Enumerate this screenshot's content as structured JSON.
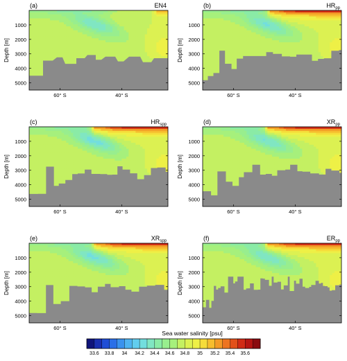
{
  "chart_data": {
    "type": "heatmap",
    "figure": "six-panel meridional sections of sea water salinity (depth vs latitude)",
    "y_label": "Depth [m]",
    "y_ticks": [
      1000,
      2000,
      3000,
      4000,
      5000
    ],
    "y_range": [
      0,
      5500
    ],
    "x_ticks": [
      "60° S",
      "40° S"
    ],
    "x_tick_values": [
      -60,
      -40
    ],
    "x_range": [
      -70,
      -25
    ],
    "colorbar": {
      "label": "Sea water salinity [psu]",
      "tick_labels": [
        "33.6",
        "33.8",
        "34",
        "34.2",
        "34.4",
        "34.6",
        "34.8",
        "35",
        "35.2",
        "35.4",
        "35.6"
      ],
      "levels": [
        33.5,
        33.6,
        33.7,
        33.8,
        33.9,
        34.0,
        34.1,
        34.2,
        34.3,
        34.4,
        34.5,
        34.6,
        34.7,
        34.8,
        34.9,
        35.0,
        35.1,
        35.2,
        35.3,
        35.4,
        35.5,
        35.6,
        35.7
      ],
      "colors": [
        "#10147a",
        "#1a2fb0",
        "#1f4ed6",
        "#2a6fe8",
        "#3a92ee",
        "#4fb3f1",
        "#62cdee",
        "#72dede",
        "#80e6c2",
        "#8aeba6",
        "#98ee8e",
        "#a6f07c",
        "#c4f062",
        "#dcf152",
        "#eef046",
        "#f6dc3a",
        "#f6bd2e",
        "#f39a26",
        "#ed7420",
        "#e2501a",
        "#d02b16",
        "#b51513",
        "#8a0b10"
      ]
    },
    "panels": [
      {
        "letter": "(a)",
        "name": "EN4",
        "sub": ""
      },
      {
        "letter": "(b)",
        "name": "HR",
        "sub": "pp"
      },
      {
        "letter": "(c)",
        "name": "HR",
        "sub": "spp"
      },
      {
        "letter": "(d)",
        "name": "XR",
        "sub": "pp"
      },
      {
        "letter": "(e)",
        "name": "XR",
        "sub": "spp"
      },
      {
        "letter": "(f)",
        "name": "ER",
        "sub": "pp"
      }
    ]
  }
}
